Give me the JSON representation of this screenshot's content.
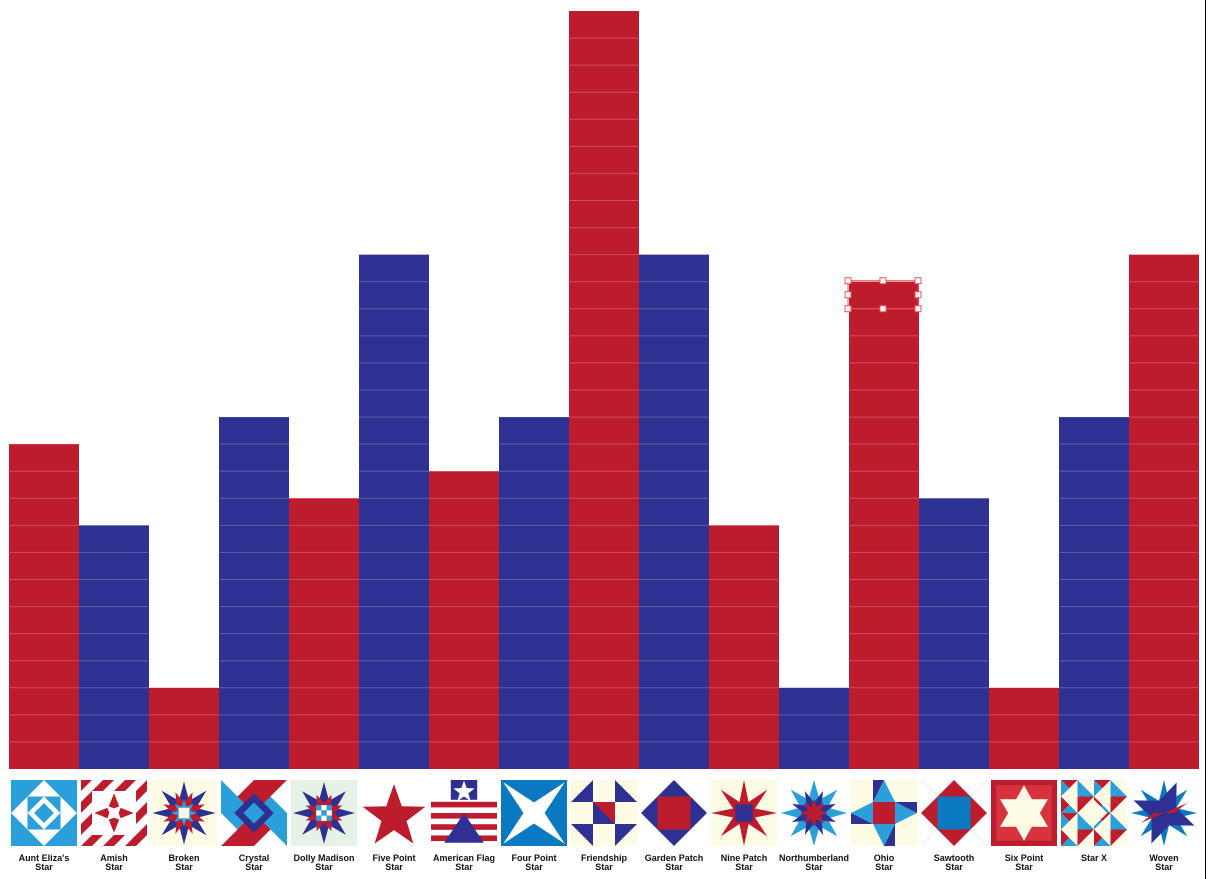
{
  "chart_data": {
    "type": "bar",
    "categories": [
      [
        "Aunt Eliza's",
        "Star"
      ],
      [
        "Amish",
        "Star"
      ],
      [
        "Broken",
        "Star"
      ],
      [
        "Crystal",
        "Star"
      ],
      [
        "Dolly Madison",
        "Star"
      ],
      [
        "Five Point",
        "Star"
      ],
      [
        "American Flag",
        "Star"
      ],
      [
        "Four Point",
        "Star"
      ],
      [
        "Friendship",
        "Star"
      ],
      [
        "Garden Patch",
        "Star"
      ],
      [
        "Nine Patch",
        "Star"
      ],
      [
        "Northumberland",
        "Star"
      ],
      [
        "Ohio",
        "Star"
      ],
      [
        "Sawtooth",
        "Star"
      ],
      [
        "Six Point",
        "Star"
      ],
      [
        "Star X",
        ""
      ],
      [
        "Woven",
        "Star"
      ]
    ],
    "values": [
      12,
      9,
      3,
      13,
      10,
      19,
      11,
      13,
      28,
      19,
      9,
      3,
      18,
      10,
      3,
      13,
      19
    ],
    "bar_colors": [
      "red",
      "blue",
      "red",
      "blue",
      "red",
      "blue",
      "red",
      "blue",
      "red",
      "blue",
      "red",
      "blue",
      "red",
      "blue",
      "red",
      "blue",
      "red"
    ],
    "ylim": [
      0,
      28
    ],
    "grid": true,
    "selected_index": 12,
    "title": "",
    "xlabel": "",
    "ylabel": ""
  },
  "colors": {
    "red": "#bd1c2d",
    "blue": "#2e3192",
    "light_blue": "#2b9fd9",
    "cream": "#fdfbe3",
    "white": "#ffffff",
    "gridline": "#ffffff",
    "selection": "#e8555c"
  },
  "icons": [
    "aunt-elizas-star-quilt-icon",
    "amish-star-quilt-icon",
    "broken-star-quilt-icon",
    "crystal-star-quilt-icon",
    "dolly-madison-star-quilt-icon",
    "five-point-star-quilt-icon",
    "american-flag-star-quilt-icon",
    "four-point-star-quilt-icon",
    "friendship-star-quilt-icon",
    "garden-patch-star-quilt-icon",
    "nine-patch-star-quilt-icon",
    "northumberland-star-quilt-icon",
    "ohio-star-quilt-icon",
    "sawtooth-star-quilt-icon",
    "six-point-star-quilt-icon",
    "star-x-quilt-icon",
    "woven-star-quilt-icon"
  ]
}
